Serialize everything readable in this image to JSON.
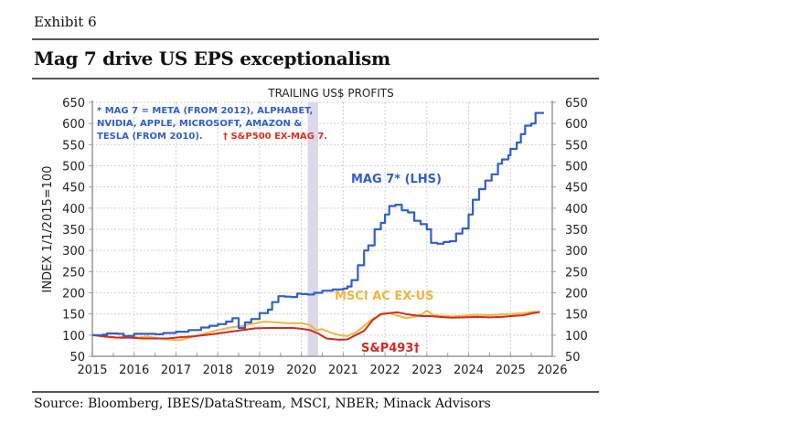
{
  "header": {
    "exhibit": "Exhibit 6",
    "title": "Mag 7 drive US EPS exceptionalism"
  },
  "footer": {
    "source": "Source: Bloomberg, IBES/DataStream, MSCI, NBER; Minack Advisors"
  },
  "chart_data": {
    "type": "line",
    "title": "TRAILING US$ PROFITS",
    "ylabel": "INDEX 1/1/2015=100",
    "xlabel": "",
    "xlim": [
      2015,
      2026
    ],
    "ylim": [
      50,
      650
    ],
    "x_ticks": [
      "2015",
      "2016",
      "2017",
      "2018",
      "2019",
      "2020",
      "2021",
      "2022",
      "2023",
      "2024",
      "2025",
      "2026"
    ],
    "y_ticks": [
      "50",
      "100",
      "150",
      "200",
      "250",
      "300",
      "350",
      "400",
      "450",
      "500",
      "550",
      "600",
      "650"
    ],
    "y_ticks_right": [
      "50",
      "100",
      "150",
      "200",
      "250",
      "300",
      "350",
      "400",
      "450",
      "500",
      "550",
      "600",
      "650"
    ],
    "grid": true,
    "recession_shading": [
      2020.15,
      2020.4
    ],
    "notes": {
      "line1": "* MAG 7 = META (FROM 2012), ALPHABET,",
      "line2": "NVIDIA, APPLE, MICROSOFT, AMAZON &",
      "line3a": "TESLA (FROM 2010).",
      "line3b": "† S&P500 EX-MAG 7."
    },
    "colors": {
      "mag7": "#2f5fd0",
      "msci": "#f0b83a",
      "sp493": "#d42a1e",
      "note_blue": "#2f5fd0",
      "note_red": "#e03020",
      "shade": "#dcd8ea",
      "grid": "#cfcfdc"
    },
    "series": [
      {
        "name": "MAG 7* (LHS)",
        "key": "mag7",
        "points": [
          [
            2015.0,
            100
          ],
          [
            2015.25,
            101
          ],
          [
            2015.35,
            104
          ],
          [
            2015.6,
            103
          ],
          [
            2015.75,
            98
          ],
          [
            2015.9,
            98
          ],
          [
            2016.0,
            103
          ],
          [
            2016.5,
            102
          ],
          [
            2016.7,
            105
          ],
          [
            2017.0,
            108
          ],
          [
            2017.3,
            112
          ],
          [
            2017.6,
            118
          ],
          [
            2017.8,
            122
          ],
          [
            2018.0,
            126
          ],
          [
            2018.2,
            132
          ],
          [
            2018.35,
            140
          ],
          [
            2018.5,
            117
          ],
          [
            2018.65,
            130
          ],
          [
            2018.8,
            138
          ],
          [
            2019.0,
            152
          ],
          [
            2019.2,
            160
          ],
          [
            2019.3,
            178
          ],
          [
            2019.45,
            192
          ],
          [
            2019.6,
            191
          ],
          [
            2019.75,
            190
          ],
          [
            2019.9,
            198
          ],
          [
            2020.0,
            197
          ],
          [
            2020.15,
            196
          ],
          [
            2020.3,
            200
          ],
          [
            2020.5,
            205
          ],
          [
            2020.75,
            208
          ],
          [
            2021.0,
            210
          ],
          [
            2021.1,
            215
          ],
          [
            2021.2,
            230
          ],
          [
            2021.35,
            265
          ],
          [
            2021.5,
            300
          ],
          [
            2021.6,
            312
          ],
          [
            2021.75,
            350
          ],
          [
            2021.9,
            365
          ],
          [
            2022.0,
            385
          ],
          [
            2022.1,
            405
          ],
          [
            2022.25,
            408
          ],
          [
            2022.4,
            395
          ],
          [
            2022.55,
            390
          ],
          [
            2022.7,
            370
          ],
          [
            2022.85,
            362
          ],
          [
            2023.0,
            350
          ],
          [
            2023.1,
            318
          ],
          [
            2023.25,
            316
          ],
          [
            2023.4,
            320
          ],
          [
            2023.55,
            322
          ],
          [
            2023.7,
            340
          ],
          [
            2023.85,
            352
          ],
          [
            2024.0,
            385
          ],
          [
            2024.1,
            420
          ],
          [
            2024.25,
            445
          ],
          [
            2024.4,
            465
          ],
          [
            2024.55,
            480
          ],
          [
            2024.7,
            505
          ],
          [
            2024.8,
            515
          ],
          [
            2024.95,
            525
          ],
          [
            2025.0,
            540
          ],
          [
            2025.15,
            555
          ],
          [
            2025.25,
            575
          ],
          [
            2025.35,
            595
          ],
          [
            2025.5,
            600
          ],
          [
            2025.6,
            625
          ],
          [
            2025.8,
            625
          ]
        ]
      },
      {
        "name": "MSCI AC EX-US",
        "key": "msci",
        "points": [
          [
            2015.0,
            100
          ],
          [
            2015.3,
            96
          ],
          [
            2015.6,
            94
          ],
          [
            2015.9,
            100
          ],
          [
            2016.1,
            94
          ],
          [
            2016.3,
            97
          ],
          [
            2016.6,
            92
          ],
          [
            2016.9,
            89
          ],
          [
            2017.1,
            88
          ],
          [
            2017.4,
            96
          ],
          [
            2017.7,
            104
          ],
          [
            2018.0,
            112
          ],
          [
            2018.3,
            118
          ],
          [
            2018.6,
            122
          ],
          [
            2018.9,
            128
          ],
          [
            2019.1,
            132
          ],
          [
            2019.4,
            130
          ],
          [
            2019.7,
            128
          ],
          [
            2020.0,
            128
          ],
          [
            2020.2,
            124
          ],
          [
            2020.35,
            112
          ],
          [
            2020.5,
            114
          ],
          [
            2020.7,
            106
          ],
          [
            2020.9,
            100
          ],
          [
            2021.1,
            98
          ],
          [
            2021.3,
            106
          ],
          [
            2021.5,
            122
          ],
          [
            2021.7,
            138
          ],
          [
            2021.9,
            148
          ],
          [
            2022.1,
            152
          ],
          [
            2022.3,
            146
          ],
          [
            2022.5,
            140
          ],
          [
            2022.7,
            143
          ],
          [
            2022.9,
            150
          ],
          [
            2023.0,
            158
          ],
          [
            2023.15,
            148
          ],
          [
            2023.3,
            146
          ],
          [
            2023.6,
            144
          ],
          [
            2023.9,
            146
          ],
          [
            2024.2,
            148
          ],
          [
            2024.5,
            147
          ],
          [
            2024.8,
            149
          ],
          [
            2025.0,
            150
          ],
          [
            2025.3,
            152
          ],
          [
            2025.55,
            155
          ],
          [
            2025.7,
            154
          ]
        ]
      },
      {
        "name": "S&P493†",
        "key": "sp493",
        "points": [
          [
            2015.0,
            100
          ],
          [
            2015.3,
            97
          ],
          [
            2015.6,
            94
          ],
          [
            2015.9,
            94
          ],
          [
            2016.2,
            92
          ],
          [
            2016.5,
            92
          ],
          [
            2016.8,
            92
          ],
          [
            2017.1,
            95
          ],
          [
            2017.4,
            97
          ],
          [
            2017.7,
            100
          ],
          [
            2018.0,
            104
          ],
          [
            2018.3,
            108
          ],
          [
            2018.6,
            112
          ],
          [
            2018.9,
            116
          ],
          [
            2019.2,
            117
          ],
          [
            2019.5,
            117
          ],
          [
            2019.8,
            117
          ],
          [
            2020.0,
            115
          ],
          [
            2020.2,
            112
          ],
          [
            2020.4,
            104
          ],
          [
            2020.6,
            92
          ],
          [
            2020.9,
            89
          ],
          [
            2021.1,
            90
          ],
          [
            2021.3,
            100
          ],
          [
            2021.5,
            110
          ],
          [
            2021.7,
            135
          ],
          [
            2021.9,
            150
          ],
          [
            2022.1,
            152
          ],
          [
            2022.3,
            154
          ],
          [
            2022.5,
            150
          ],
          [
            2022.7,
            147
          ],
          [
            2022.9,
            145
          ],
          [
            2023.1,
            145
          ],
          [
            2023.3,
            143
          ],
          [
            2023.6,
            141
          ],
          [
            2023.9,
            142
          ],
          [
            2024.2,
            143
          ],
          [
            2024.5,
            142
          ],
          [
            2024.8,
            143
          ],
          [
            2025.0,
            145
          ],
          [
            2025.3,
            147
          ],
          [
            2025.55,
            152
          ],
          [
            2025.7,
            155
          ]
        ]
      }
    ],
    "labels": {
      "mag7": "MAG 7* (LHS)",
      "msci": "MSCI AC EX-US",
      "sp493": "S&P493†"
    }
  }
}
